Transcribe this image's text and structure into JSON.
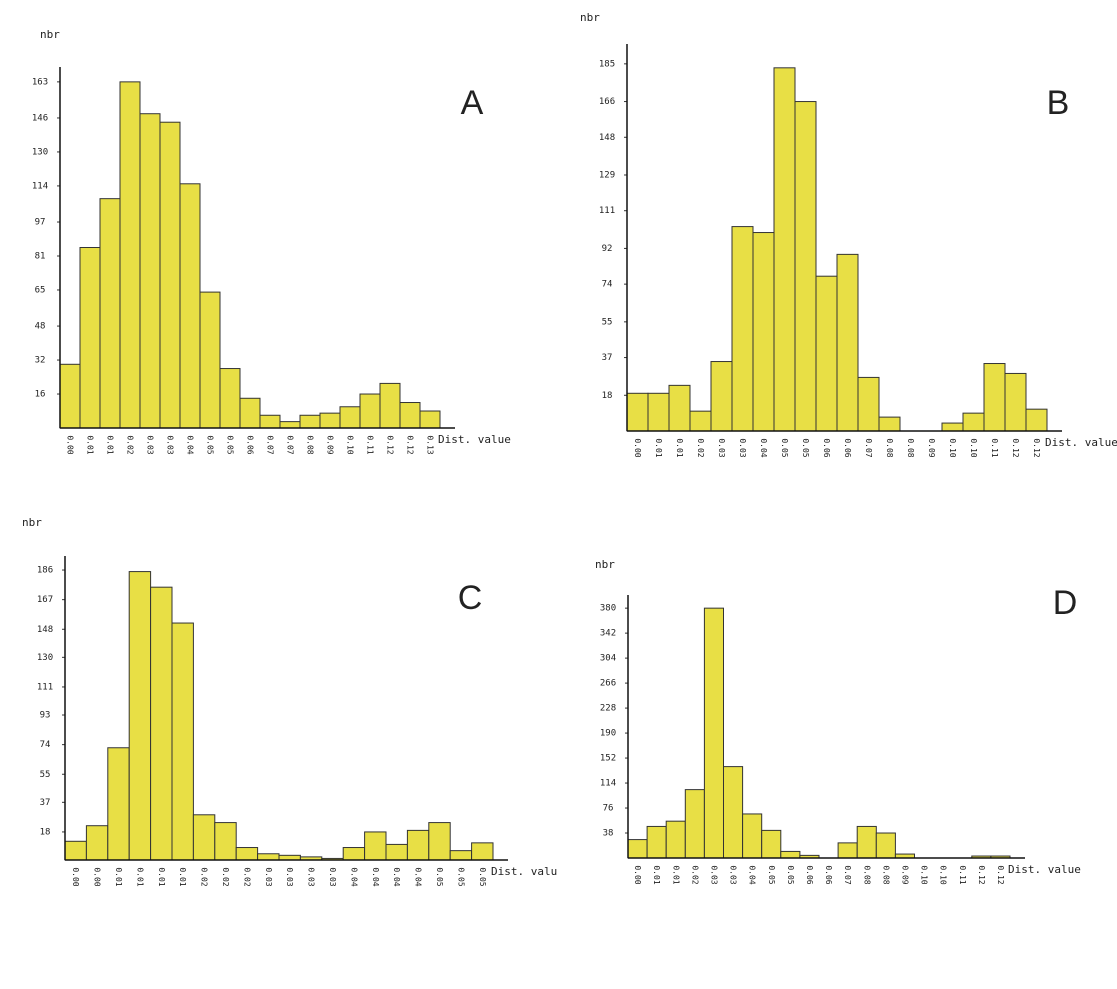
{
  "chart_data": [
    {
      "type": "bar",
      "title": "A",
      "ylabel": "nbr",
      "xlabel": "Dist. value",
      "color": "#e8df45",
      "categories": [
        "0.00",
        "0.01",
        "0.01",
        "0.02",
        "0.03",
        "0.03",
        "0.04",
        "0.05",
        "0.05",
        "0.06",
        "0.07",
        "0.07",
        "0.08",
        "0.09",
        "0.10",
        "0.11",
        "0.12",
        "0.12",
        "0.13"
      ],
      "values": [
        30,
        85,
        108,
        163,
        148,
        144,
        115,
        64,
        28,
        14,
        6,
        3,
        6,
        7,
        10,
        16,
        21,
        12,
        8
      ],
      "ylim": [
        0,
        170
      ],
      "yticks": [
        16,
        32,
        48,
        65,
        81,
        97,
        114,
        130,
        146,
        163
      ]
    },
    {
      "type": "bar",
      "title": "B",
      "ylabel": "nbr",
      "xlabel": "Dist. value",
      "color": "#e8df45",
      "categories": [
        "0.00",
        "0.01",
        "0.01",
        "0.02",
        "0.03",
        "0.03",
        "0.04",
        "0.05",
        "0.05",
        "0.06",
        "0.06",
        "0.07",
        "0.08",
        "0.08",
        "0.09",
        "0.10",
        "0.10",
        "0.11",
        "0.12",
        "0.12"
      ],
      "values": [
        19,
        19,
        23,
        10,
        35,
        103,
        100,
        183,
        166,
        78,
        89,
        27,
        7,
        0,
        0,
        4,
        9,
        34,
        29,
        11
      ],
      "ylim": [
        0,
        195
      ],
      "yticks": [
        18,
        37,
        55,
        74,
        92,
        111,
        129,
        148,
        166,
        185
      ]
    },
    {
      "type": "bar",
      "title": "C",
      "ylabel": "nbr",
      "xlabel": "Dist. valu",
      "color": "#e8df45",
      "categories": [
        "0.00",
        "0.00",
        "0.01",
        "0.01",
        "0.01",
        "0.01",
        "0.02",
        "0.02",
        "0.02",
        "0.03",
        "0.03",
        "0.03",
        "0.03",
        "0.04",
        "0.04",
        "0.04",
        "0.04",
        "0.05",
        "0.05",
        "0.05"
      ],
      "values": [
        12,
        22,
        72,
        185,
        175,
        152,
        29,
        24,
        8,
        4,
        3,
        2,
        1,
        8,
        18,
        10,
        19,
        24,
        6,
        11
      ],
      "ylim": [
        0,
        195
      ],
      "yticks": [
        18,
        37,
        55,
        74,
        93,
        111,
        130,
        148,
        167,
        186
      ]
    },
    {
      "type": "bar",
      "title": "D",
      "ylabel": "nbr",
      "xlabel": "Dist. value",
      "color": "#e8df45",
      "categories": [
        "0.00",
        "0.01",
        "0.01",
        "0.02",
        "0.03",
        "0.03",
        "0.04",
        "0.05",
        "0.05",
        "0.06",
        "0.06",
        "0.07",
        "0.08",
        "0.08",
        "0.09",
        "0.10",
        "0.10",
        "0.11",
        "0.12",
        "0.12"
      ],
      "values": [
        28,
        48,
        56,
        104,
        380,
        139,
        67,
        42,
        10,
        4,
        0,
        23,
        48,
        38,
        6,
        0,
        0,
        0,
        3,
        3
      ],
      "ylim": [
        0,
        400
      ],
      "yticks": [
        38,
        76,
        114,
        152,
        190,
        228,
        266,
        304,
        342,
        380
      ]
    }
  ]
}
